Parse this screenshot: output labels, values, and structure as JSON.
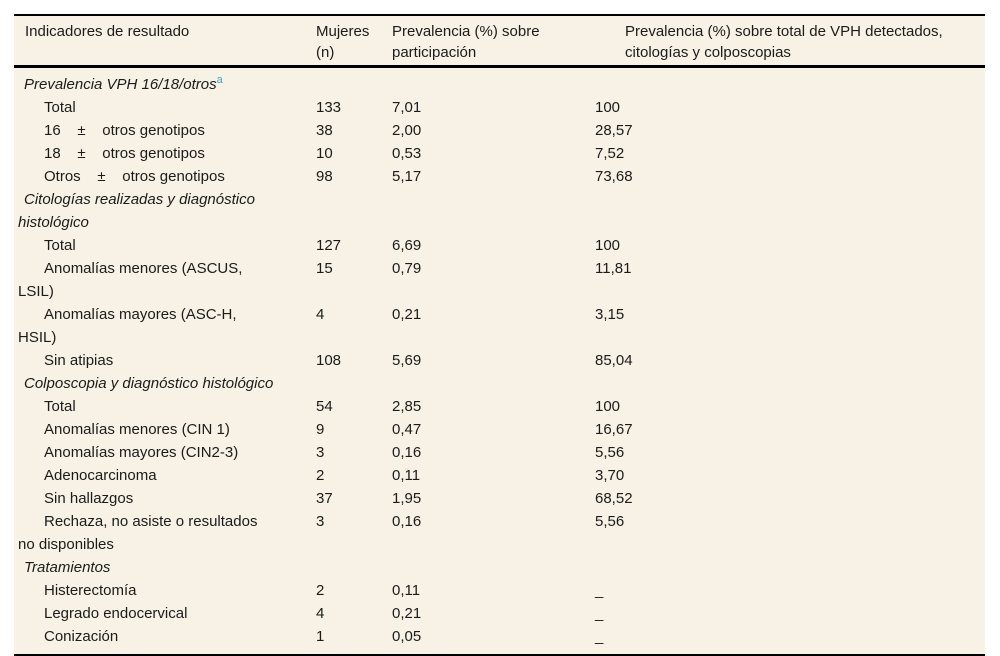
{
  "table": {
    "background_color": "#f7f2e5",
    "text_color": "#1b1b1b",
    "rule_color": "#000000",
    "footnote_marker_color": "#3ea6c9",
    "columns": [
      "Indicadores de resultado",
      "Mujeres\n(n)",
      "Prevalencia (%) sobre\nparticipación",
      "Prevalencia (%) sobre total de VPH detectados,\ncitologías y colposcopias"
    ],
    "rows": [
      {
        "type": "section",
        "label": "Prevalencia VPH 16/18/otros",
        "marker": "a"
      },
      {
        "type": "item",
        "label": "Total",
        "n": 133,
        "prev_part": "7,01",
        "prev_total": "100"
      },
      {
        "type": "item",
        "label": "16    ±    otros genotipos",
        "n": 38,
        "prev_part": "2,00",
        "prev_total": "28,57"
      },
      {
        "type": "item",
        "label": "18    ±    otros genotipos",
        "n": 10,
        "prev_part": "0,53",
        "prev_total": "7,52"
      },
      {
        "type": "item",
        "label": "Otros    ±    otros genotipos",
        "n": 98,
        "prev_part": "5,17",
        "prev_total": "73,68"
      },
      {
        "type": "section",
        "label": "Citologías realizadas y diagnóstico histológico"
      },
      {
        "type": "item",
        "label": "Total",
        "n": 127,
        "prev_part": "6,69",
        "prev_total": "100"
      },
      {
        "type": "item",
        "label": "Anomalías menores (ASCUS,\nLSIL)",
        "n": 15,
        "prev_part": "0,79",
        "prev_total": "11,81"
      },
      {
        "type": "item",
        "label": "Anomalías mayores (ASC-H,\nHSIL)",
        "n": 4,
        "prev_part": "0,21",
        "prev_total": "3,15"
      },
      {
        "type": "item",
        "label": "Sin atipias",
        "n": 108,
        "prev_part": "5,69",
        "prev_total": "85,04"
      },
      {
        "type": "section",
        "label": "Colposcopia y diagnóstico histológico"
      },
      {
        "type": "item",
        "label": "Total",
        "n": 54,
        "prev_part": "2,85",
        "prev_total": "100"
      },
      {
        "type": "item",
        "label": "Anomalías menores (CIN 1)",
        "n": 9,
        "prev_part": "0,47",
        "prev_total": "16,67"
      },
      {
        "type": "item",
        "label": "Anomalías mayores (CIN2-3)",
        "n": 3,
        "prev_part": "0,16",
        "prev_total": "5,56"
      },
      {
        "type": "item",
        "label": "Adenocarcinoma",
        "n": 2,
        "prev_part": "0,11",
        "prev_total": "3,70"
      },
      {
        "type": "item",
        "label": "Sin hallazgos",
        "n": 37,
        "prev_part": "1,95",
        "prev_total": "68,52"
      },
      {
        "type": "item",
        "label": "Rechaza, no asiste o resultados\nno disponibles",
        "n": 3,
        "prev_part": "0,16",
        "prev_total": "5,56"
      },
      {
        "type": "section",
        "label": "Tratamientos"
      },
      {
        "type": "item",
        "label": "Histerectomía",
        "n": 2,
        "prev_part": "0,11",
        "prev_total": "_"
      },
      {
        "type": "item",
        "label": "Legrado endocervical",
        "n": 4,
        "prev_part": "0,21",
        "prev_total": "_"
      },
      {
        "type": "item",
        "label": "Conización",
        "n": 1,
        "prev_part": "0,05",
        "prev_total": "_"
      }
    ]
  }
}
